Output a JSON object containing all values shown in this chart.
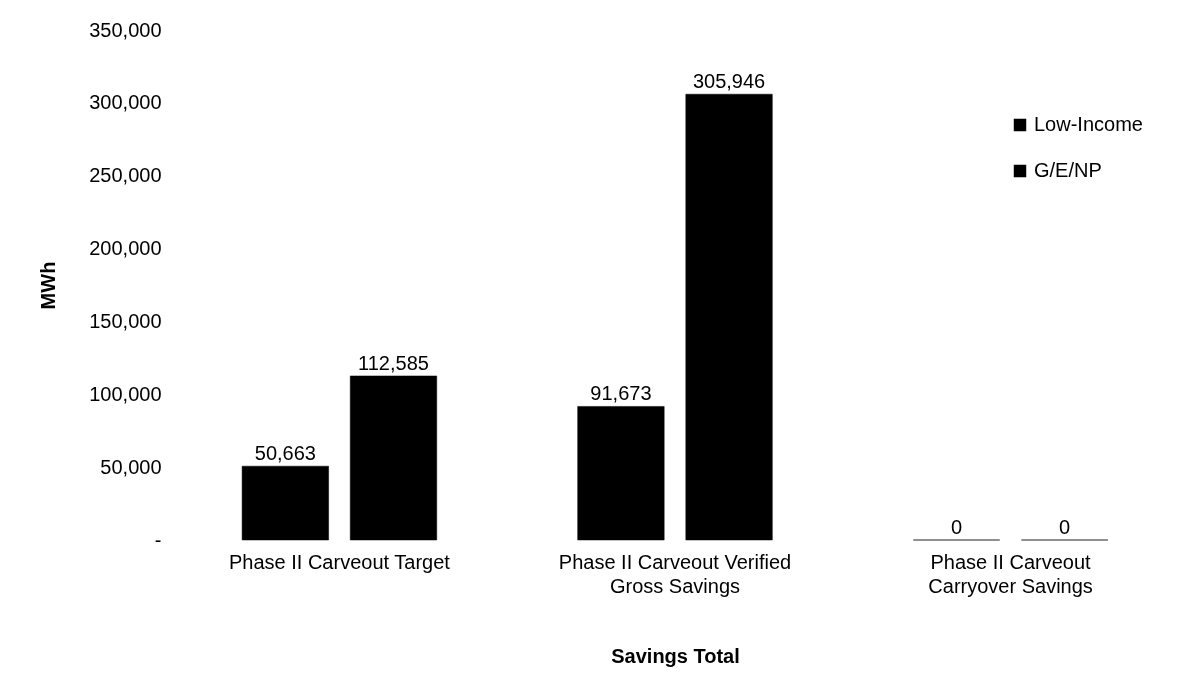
{
  "chart_data": {
    "type": "bar",
    "xlabel": "Savings Total",
    "ylabel": "MWh",
    "categories": [
      "Phase II Carveout Target",
      "Phase II Carveout Verified Gross Savings",
      "Phase II Carveout Carryover Savings"
    ],
    "series": [
      {
        "name": "Low-Income",
        "color": "#000000",
        "values": [
          50663,
          91673,
          0
        ],
        "value_labels": [
          "50,663",
          "91,673",
          "0"
        ]
      },
      {
        "name": "G/E/NP",
        "color": "#000000",
        "values": [
          112585,
          305946,
          0
        ],
        "value_labels": [
          "112,585",
          "305,946",
          "0"
        ]
      }
    ],
    "ylim": [
      0,
      350000
    ],
    "yticks": [
      {
        "value": 0,
        "label": "-"
      },
      {
        "value": 50000,
        "label": "50,000"
      },
      {
        "value": 100000,
        "label": "100,000"
      },
      {
        "value": 150000,
        "label": "150,000"
      },
      {
        "value": 200000,
        "label": "200,000"
      },
      {
        "value": 250000,
        "label": "250,000"
      },
      {
        "value": 300000,
        "label": "300,000"
      },
      {
        "value": 350000,
        "label": "350,000"
      }
    ],
    "legend": "right"
  }
}
